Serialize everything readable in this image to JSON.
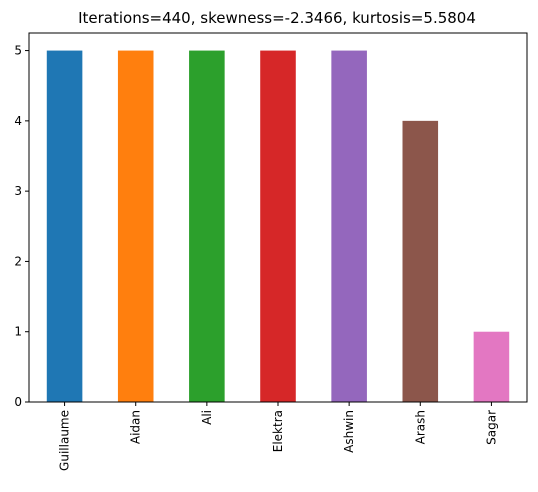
{
  "chart_data": {
    "type": "bar",
    "title": "Iterations=440, skewness=-2.3466, kurtosis=5.5804",
    "xlabel": "",
    "ylabel": "",
    "categories": [
      "Guillaume",
      "Aidan",
      "Ali",
      "Elektra",
      "Ashwin",
      "Arash",
      "Sagar"
    ],
    "values": [
      5,
      5,
      5,
      5,
      5,
      4,
      1
    ],
    "colors": [
      "#1f77b4",
      "#ff7f0e",
      "#2ca02c",
      "#d62728",
      "#9467bd",
      "#8c564b",
      "#e377c2"
    ],
    "ylim": [
      0,
      5.25
    ],
    "yticks": [
      "0",
      "1",
      "2",
      "3",
      "4",
      "5"
    ],
    "grid": false,
    "legend": "none"
  }
}
